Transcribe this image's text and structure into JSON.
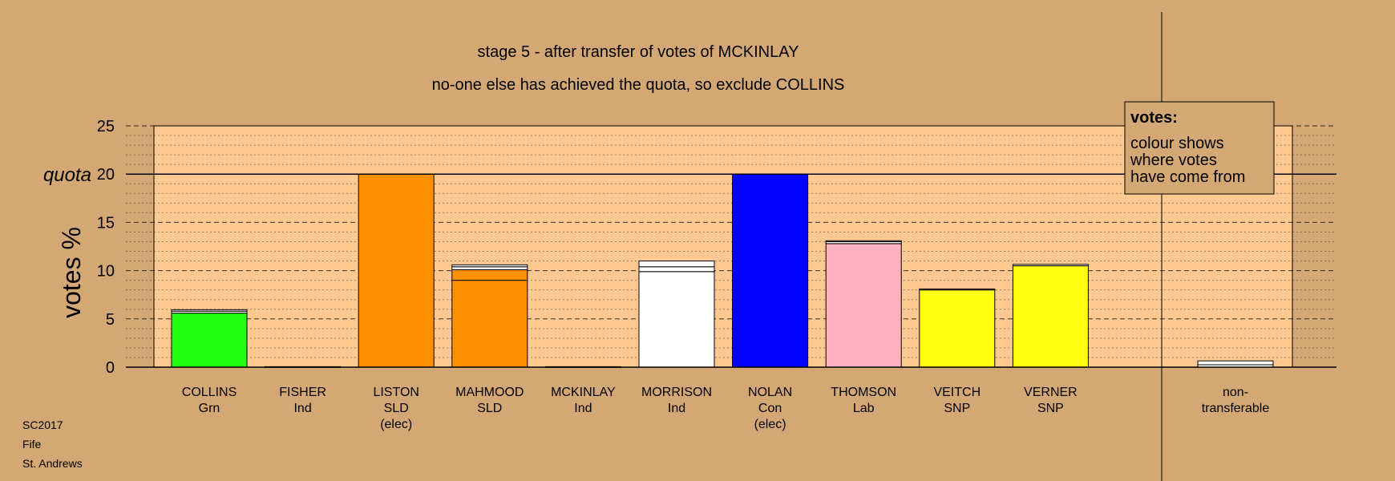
{
  "chart_data": {
    "type": "bar",
    "title": "stage 5 - after transfer of votes of MCKINLAY",
    "subtitle": "no-one else has achieved the quota, so exclude COLLINS",
    "ylabel": "votes %",
    "ylim": [
      0,
      25
    ],
    "yticks": [
      "0",
      "5",
      "10",
      "15",
      "20",
      "25"
    ],
    "quota": {
      "label": "quota",
      "value": 20
    },
    "candidates": [
      {
        "lines": [
          "COLLINS",
          "Grn"
        ],
        "color": "#22ff11",
        "segments": [
          {
            "value": 5.6,
            "color": "#22ff11"
          },
          {
            "value": 0.2,
            "color": "#ffffff"
          },
          {
            "value": 0.15,
            "color": "#ffffff"
          }
        ]
      },
      {
        "lines": [
          "FISHER",
          "Ind"
        ],
        "color": "#ffffff",
        "segments": [
          {
            "value": 0.05,
            "color": "#ffffff"
          }
        ]
      },
      {
        "lines": [
          "LISTON",
          "SLD",
          "(elec)"
        ],
        "color": "#ff9100",
        "segments": [
          {
            "value": 20,
            "color": "#ff9100"
          }
        ]
      },
      {
        "lines": [
          "MAHMOOD",
          "SLD"
        ],
        "color": "#ff9100",
        "segments": [
          {
            "value": 9.0,
            "color": "#ff9100"
          },
          {
            "value": 1.1,
            "color": "#ff9100"
          },
          {
            "value": 0.3,
            "color": "#ffffff"
          },
          {
            "value": 0.2,
            "color": "#ffffff"
          }
        ]
      },
      {
        "lines": [
          "MCKINLAY",
          "Ind"
        ],
        "color": "#ffffff",
        "segments": [
          {
            "value": 0.05,
            "color": "#ffffff"
          }
        ]
      },
      {
        "lines": [
          "MORRISON",
          "Ind"
        ],
        "color": "#ffffff",
        "segments": [
          {
            "value": 9.9,
            "color": "#ffffff"
          },
          {
            "value": 0.5,
            "color": "#ffffff"
          },
          {
            "value": 0.6,
            "color": "#ffffff"
          }
        ]
      },
      {
        "lines": [
          "NOLAN",
          "Con",
          "(elec)"
        ],
        "color": "#0000ff",
        "segments": [
          {
            "value": 20,
            "color": "#0000ff"
          }
        ]
      },
      {
        "lines": [
          "THOMSON",
          "Lab"
        ],
        "color": "#ffb1c1",
        "segments": [
          {
            "value": 12.8,
            "color": "#ffb1c1"
          },
          {
            "value": 0.2,
            "color": "#ffffff"
          },
          {
            "value": 0.1,
            "color": "#ffffff"
          }
        ]
      },
      {
        "lines": [
          "VEITCH",
          "SNP"
        ],
        "color": "#ffff11",
        "segments": [
          {
            "value": 8.0,
            "color": "#ffff11"
          },
          {
            "value": 0.1,
            "color": "#ffffff"
          }
        ]
      },
      {
        "lines": [
          "VERNER",
          "SNP"
        ],
        "color": "#ffff11",
        "segments": [
          {
            "value": 10.5,
            "color": "#ffff11"
          },
          {
            "value": 0.15,
            "color": "#ffffff"
          }
        ]
      }
    ],
    "nontransferable": {
      "lines": [
        "non-",
        "transferable"
      ],
      "segments": [
        {
          "value": 0.25,
          "color": "#ffffff"
        },
        {
          "value": 0.4,
          "color": "#ffffff"
        }
      ]
    },
    "legend": {
      "title": "votes:",
      "lines": [
        "colour shows",
        "where votes",
        "have come from"
      ],
      "placement": "top-right"
    }
  },
  "footer": {
    "lines": [
      "SC2017",
      "Fife",
      "St. Andrews"
    ]
  }
}
